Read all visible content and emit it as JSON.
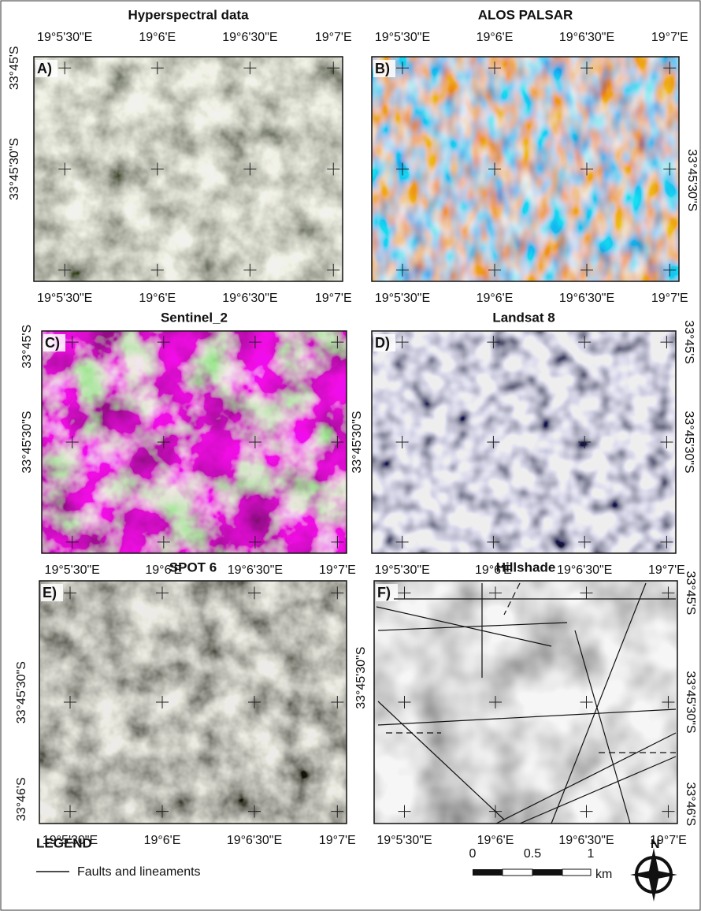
{
  "panels": [
    {
      "letter": "A)",
      "title": "Hyperspectral data",
      "top": [
        "19°5'30\"E",
        "19°6'E",
        "19°6'30\"E",
        "19°7'E"
      ],
      "bottom": [
        "19°5'30\"E",
        "19°6'E",
        "19°6'30\"E",
        "19°7'E"
      ],
      "left": [
        "33°45'S",
        "33°45'30\"S"
      ]
    },
    {
      "letter": "B)",
      "title": "ALOS PALSAR",
      "top": [
        "19°5'30\"E",
        "19°6'E",
        "19°6'30\"E",
        "19°7'E"
      ],
      "bottom": [
        "19°5'30\"E",
        "19°6'E",
        "19°6'30\"E",
        "19°7'E"
      ],
      "right": [
        "33°45'30\"S"
      ]
    },
    {
      "letter": "C)",
      "title": "Sentinel_2",
      "bottom": [
        "19°5'30\"E",
        "19°6'E",
        "19°6'30\"E",
        "19°7'E"
      ],
      "left": [
        "33°45'S",
        "33°45'30\"S"
      ]
    },
    {
      "letter": "D)",
      "title": "Landsat 8",
      "bottom": [
        "19°5'30\"E",
        "19°6'E",
        "19°6'30\"E",
        "19°7'E"
      ],
      "left": [
        "33°45'30\"S"
      ],
      "right": [
        "33°45'S",
        "33°45'30\"S"
      ]
    },
    {
      "letter": "E)",
      "title": "SPOT 6",
      "bottom": [
        "19°5'30\"E",
        "19°6'E",
        "19°6'30\"E",
        "19°7'E"
      ],
      "left": [
        "33°45'30\"S",
        "33°46'S"
      ]
    },
    {
      "letter": "F)",
      "title": "Hillshade",
      "bottom": [
        "19°5'30\"E",
        "19°6'E",
        "19°6'30\"E",
        "19°7'E"
      ],
      "left": [
        "33°45'30\"S"
      ],
      "right": [
        "33°45'S",
        "33°45'30\"S",
        "33°46'S"
      ]
    }
  ],
  "legend": {
    "title": "LEGEND",
    "item": "Faults and lineaments"
  },
  "scale_bar": {
    "labels": [
      "0",
      "0.5",
      "1"
    ],
    "unit": "km"
  }
}
